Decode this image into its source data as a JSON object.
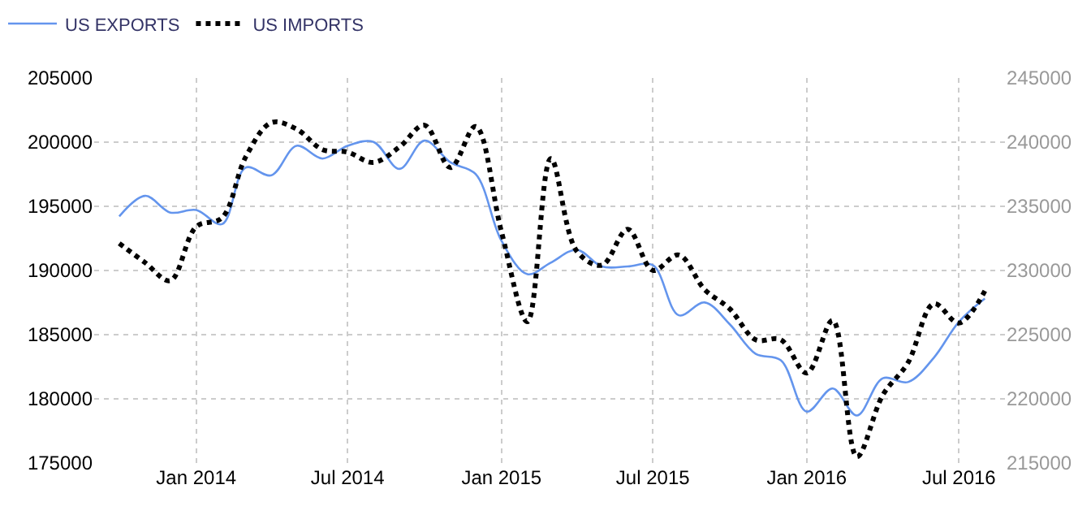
{
  "chart_data": {
    "type": "line",
    "x": [
      "2013-10-01",
      "2013-11-01",
      "2013-12-01",
      "2014-01-01",
      "2014-02-01",
      "2014-03-01",
      "2014-04-01",
      "2014-05-01",
      "2014-06-01",
      "2014-07-01",
      "2014-08-01",
      "2014-09-01",
      "2014-10-01",
      "2014-11-01",
      "2014-12-01",
      "2015-01-01",
      "2015-02-01",
      "2015-03-01",
      "2015-04-01",
      "2015-05-01",
      "2015-06-01",
      "2015-07-01",
      "2015-08-01",
      "2015-09-01",
      "2015-10-01",
      "2015-11-01",
      "2015-12-01",
      "2016-01-01",
      "2016-02-01",
      "2016-03-01",
      "2016-04-01",
      "2016-05-01",
      "2016-06-01",
      "2016-07-01",
      "2016-08-01"
    ],
    "series": [
      {
        "name": "US EXPORTS",
        "color": "#6495ed",
        "line_style": "solid",
        "values": [
          194200,
          195800,
          194500,
          194700,
          193600,
          198000,
          197400,
          199700,
          198700,
          199700,
          200000,
          197900,
          200100,
          198400,
          197500,
          192300,
          189700,
          190600,
          191600,
          190300,
          190300,
          190400,
          186500,
          187500,
          185800,
          183500,
          183000,
          179000,
          180800,
          178700,
          181600,
          181300,
          183200,
          186000,
          187800
        ]
      },
      {
        "name": "US IMPORTS",
        "color": "#000000",
        "line_style": "dotted",
        "axis": "y2",
        "values": [
          232100,
          230600,
          229200,
          233400,
          234100,
          238800,
          241500,
          241000,
          239400,
          239200,
          238400,
          239600,
          241300,
          238000,
          241200,
          233000,
          226000,
          238700,
          231500,
          230400,
          233200,
          230000,
          231200,
          228500,
          227000,
          224600,
          224600,
          222000,
          226100,
          215500,
          220300,
          222800,
          227400,
          225900,
          228400
        ]
      }
    ],
    "xlim": [
      "2013-09-01",
      "2016-08-25"
    ],
    "xticks": [
      {
        "value": "2014-01-01",
        "label": "Jan 2014"
      },
      {
        "value": "2014-07-01",
        "label": "Jul 2014"
      },
      {
        "value": "2015-01-01",
        "label": "Jan 2015"
      },
      {
        "value": "2015-07-01",
        "label": "Jul 2015"
      },
      {
        "value": "2016-01-01",
        "label": "Jan 2016"
      },
      {
        "value": "2016-07-01",
        "label": "Jul 2016"
      }
    ],
    "ylim": [
      175000,
      205000
    ],
    "yticks": [
      175000,
      180000,
      185000,
      190000,
      195000,
      200000,
      205000
    ],
    "y2lim": [
      215000,
      245000
    ],
    "y2ticks": [
      215000,
      220000,
      225000,
      230000,
      235000,
      240000,
      245000
    ],
    "grid": true,
    "legend": "top left",
    "marker": "none"
  }
}
